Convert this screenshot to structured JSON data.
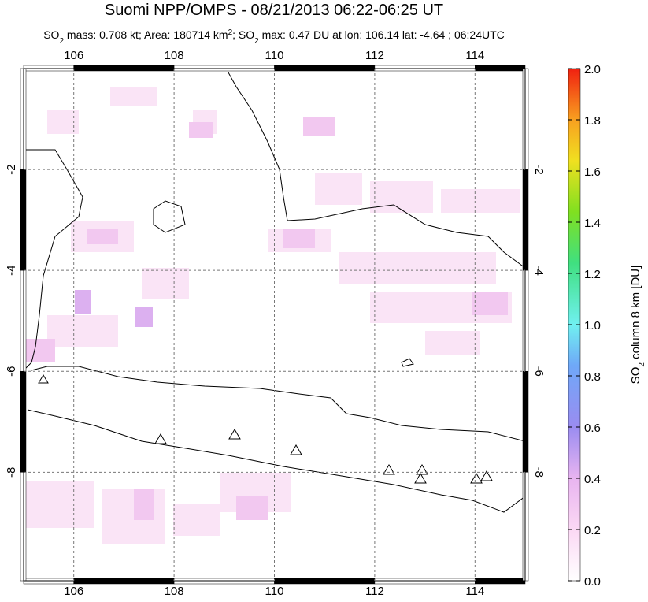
{
  "title": "Suomi NPP/OMPS - 08/21/2013 06:22-06:25 UT",
  "subtitle": [
    "SO",
    "2",
    " mass: 0.708 kt; Area: 180714 km",
    "2",
    "; SO",
    "2",
    " max: 0.47 DU at lon: 106.14 lat: -4.64 ; 06:24UTC"
  ],
  "map": {
    "lonlim": [
      105,
      115
    ],
    "latlim": [
      0,
      -10.15
    ],
    "lon_ticks": [
      106,
      108,
      110,
      112,
      114
    ],
    "lat_ticks": [
      -2,
      -4,
      -6,
      -8
    ]
  },
  "colorbar": {
    "label": [
      "SO",
      "2",
      " column 8 km [DU]"
    ],
    "lim": [
      0,
      2
    ],
    "ticks": [
      {
        "value": 0,
        "label": "0.0"
      },
      {
        "value": 0.2,
        "label": "0.2"
      },
      {
        "value": 0.4,
        "label": "0.4"
      },
      {
        "value": 0.6,
        "label": "0.6"
      },
      {
        "value": 0.8,
        "label": "0.8"
      },
      {
        "value": 1,
        "label": "1.0"
      },
      {
        "value": 1.2,
        "label": "1.2"
      },
      {
        "value": 1.4,
        "label": "1.4"
      },
      {
        "value": 1.6,
        "label": "1.6"
      },
      {
        "value": 1.8,
        "label": "1.8"
      },
      {
        "value": 2,
        "label": "2.0"
      }
    ]
  }
}
